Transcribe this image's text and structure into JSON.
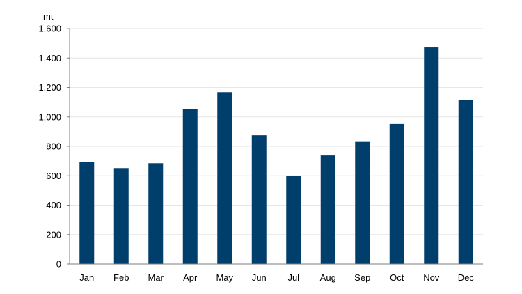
{
  "chart_data": {
    "type": "bar",
    "title": "",
    "xlabel": "",
    "ylabel": "",
    "unit_label": "mt",
    "categories": [
      "Jan",
      "Feb",
      "Mar",
      "Apr",
      "May",
      "Jun",
      "Jul",
      "Aug",
      "Sep",
      "Oct",
      "Nov",
      "Dec"
    ],
    "values": [
      695,
      652,
      685,
      1055,
      1168,
      875,
      600,
      738,
      830,
      952,
      1472,
      1115
    ],
    "ylim": [
      0,
      1600
    ],
    "yticks": [
      "0",
      "200",
      "400",
      "600",
      "800",
      "1,000",
      "1,200",
      "1,400",
      "1,600"
    ],
    "ytick_values": [
      0,
      200,
      400,
      600,
      800,
      1000,
      1200,
      1400,
      1600
    ],
    "grid": true,
    "legend": "none",
    "bar_color": "#003f6c",
    "grid_color": "#e6e6e6",
    "axis_color": "#7f7f7f"
  }
}
